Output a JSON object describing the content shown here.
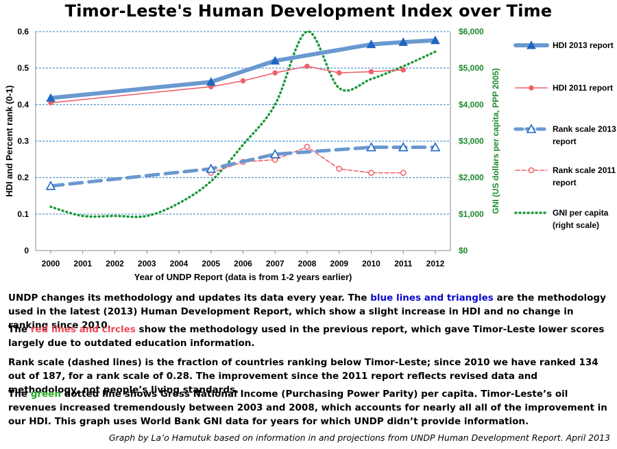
{
  "title": "Timor-Leste's Human Development Index over Time",
  "chart_data": {
    "type": "line",
    "title": "Timor-Leste's Human Development Index over Time",
    "x": [
      2000,
      2001,
      2002,
      2003,
      2004,
      2005,
      2006,
      2007,
      2008,
      2009,
      2010,
      2011,
      2012
    ],
    "xlabel": "Year of UNDP Report (data is from 1-2 years earlier)",
    "ylabel": "HDI and Percent rank (0-1)",
    "ylim": [
      0,
      0.6
    ],
    "yticks": [
      "0",
      "0.1",
      "0.2",
      "0.3",
      "0.4",
      "0.5",
      "0.6"
    ],
    "y2label": "GNI (US dollars per capita, PPP 2005)",
    "y2lim": [
      0,
      6000
    ],
    "y2ticks": [
      "$0",
      "$1,000",
      "$2,000",
      "$3,000",
      "$4,000",
      "$5,000",
      "$6,000"
    ],
    "grid": true,
    "legend_position": "right",
    "series": [
      {
        "name": "HDI 2013 report",
        "axis": "left",
        "style": "thick-solid",
        "marker": "filled-triangle",
        "color": "#6a98d0",
        "points": [
          [
            2000,
            0.418
          ],
          [
            2005,
            0.462
          ],
          [
            2007,
            0.52
          ],
          [
            2010,
            0.565
          ],
          [
            2011,
            0.571
          ],
          [
            2012,
            0.576
          ]
        ]
      },
      {
        "name": "HDI 2011 report",
        "axis": "left",
        "style": "thin-solid",
        "marker": "filled-circle",
        "color": "#f0606a",
        "points": [
          [
            2000,
            0.405
          ],
          [
            2005,
            0.449
          ],
          [
            2006,
            0.465
          ],
          [
            2007,
            0.487
          ],
          [
            2008,
            0.505
          ],
          [
            2009,
            0.487
          ],
          [
            2010,
            0.49
          ],
          [
            2011,
            0.495
          ]
        ]
      },
      {
        "name": "Rank scale 2013 report",
        "axis": "left",
        "style": "thick-dashed",
        "marker": "open-triangle",
        "color": "#6a98d0",
        "points": [
          [
            2000,
            0.177
          ],
          [
            2005,
            0.224
          ],
          [
            2007,
            0.264
          ],
          [
            2010,
            0.283
          ],
          [
            2011,
            0.283
          ],
          [
            2012,
            0.283
          ]
        ]
      },
      {
        "name": "Rank scale 2011 report",
        "axis": "left",
        "style": "thin-dashed",
        "marker": "open-circle",
        "color": "#f0606a",
        "points": [
          [
            2005,
            0.213
          ],
          [
            2006,
            0.243
          ],
          [
            2007,
            0.249
          ],
          [
            2008,
            0.284
          ],
          [
            2009,
            0.224
          ],
          [
            2010,
            0.213
          ],
          [
            2011,
            0.213
          ]
        ]
      },
      {
        "name": "GNI per capita (right scale)",
        "axis": "right",
        "style": "dotted",
        "marker": "none",
        "color": "#1a9a3a",
        "points": [
          [
            2000,
            1200
          ],
          [
            2001,
            950
          ],
          [
            2002,
            950
          ],
          [
            2003,
            950
          ],
          [
            2004,
            1300
          ],
          [
            2005,
            1900
          ],
          [
            2006,
            2900
          ],
          [
            2007,
            4000
          ],
          [
            2008,
            6000
          ],
          [
            2009,
            4450
          ],
          [
            2010,
            4700
          ],
          [
            2011,
            5050
          ],
          [
            2012,
            5450
          ]
        ]
      }
    ]
  },
  "legend": [
    {
      "label_lines": [
        "HDI 2013 report"
      ]
    },
    {
      "label_lines": [
        "HDI 2011 report"
      ]
    },
    {
      "label_lines": [
        "Rank scale 2013",
        "report"
      ]
    },
    {
      "label_lines": [
        "Rank scale 2011",
        "report"
      ]
    },
    {
      "label_lines": [
        "GNI per capita",
        "(right scale)"
      ]
    }
  ],
  "notes": {
    "p1_a": "UNDP changes its methodology and updates its data every year. The ",
    "p1_highlight": "blue lines and triangles",
    "p1_b": " are the methodology used in the latest (2013) Human Development Report, which show a slight increase in HDI and no change in ranking since 2010.",
    "p2_a": "The ",
    "p2_highlight": "red lines and circles",
    "p2_b": " show the methodology used in the previous report, which gave Timor-Leste lower scores largely due to outdated education information.",
    "p3": "Rank scale (dashed lines) is the fraction of countries ranking below Timor-Leste; since 2010 we have ranked 134 out of 187, for a rank scale of 0.28.  The improvement since the 2011 report reflects revised data and methodology, not people’s living standards.",
    "p4_a": "The ",
    "p4_highlight": "green",
    "p4_b": " dotted line shows Gross National Income (Purchasing Power Parity) per capita. Timor-Leste’s oil revenues increased tremendously between 2003 and 2008, which accounts for nearly all all of the improvement in our HDI.  This graph uses World Bank GNI data for years for which UNDP didn’t provide information."
  },
  "credit": "Graph by La’o Hamutuk based on information in and projections from UNDP Human Development Report.   April 2013"
}
